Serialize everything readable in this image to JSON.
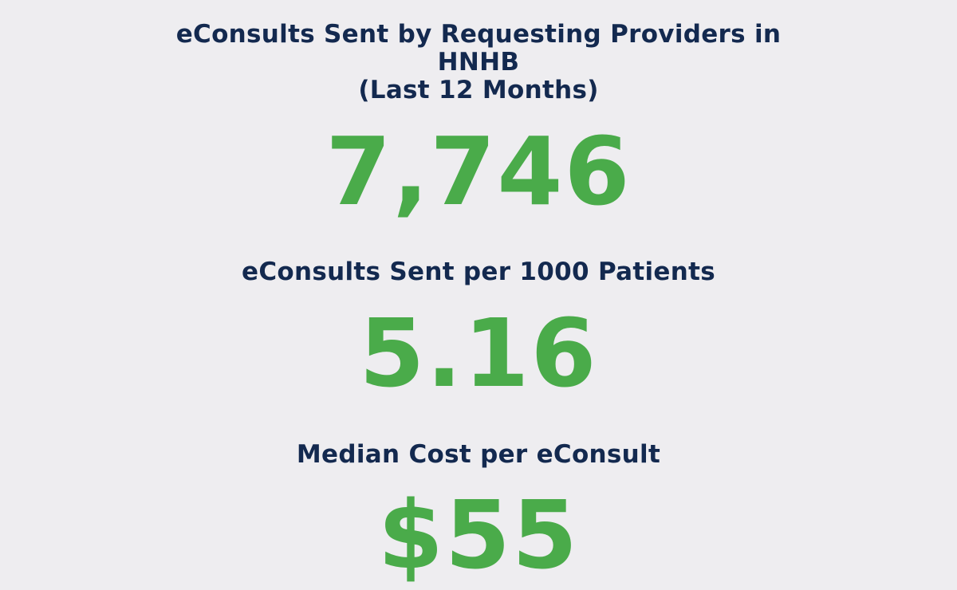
{
  "metrics": {
    "total": {
      "label_lines": [
        "eConsults Sent by Requesting Providers in",
        "HNHB",
        "(Last 12 Months)"
      ],
      "value": "7,746"
    },
    "per_1000": {
      "label": "eConsults Sent per 1000 Patients",
      "value": "5.16"
    },
    "median_cost": {
      "label": "Median Cost per eConsult",
      "value": "$55"
    }
  },
  "colors": {
    "background": "#eeedf0",
    "label": "#13294f",
    "value": "#4aab4a"
  }
}
